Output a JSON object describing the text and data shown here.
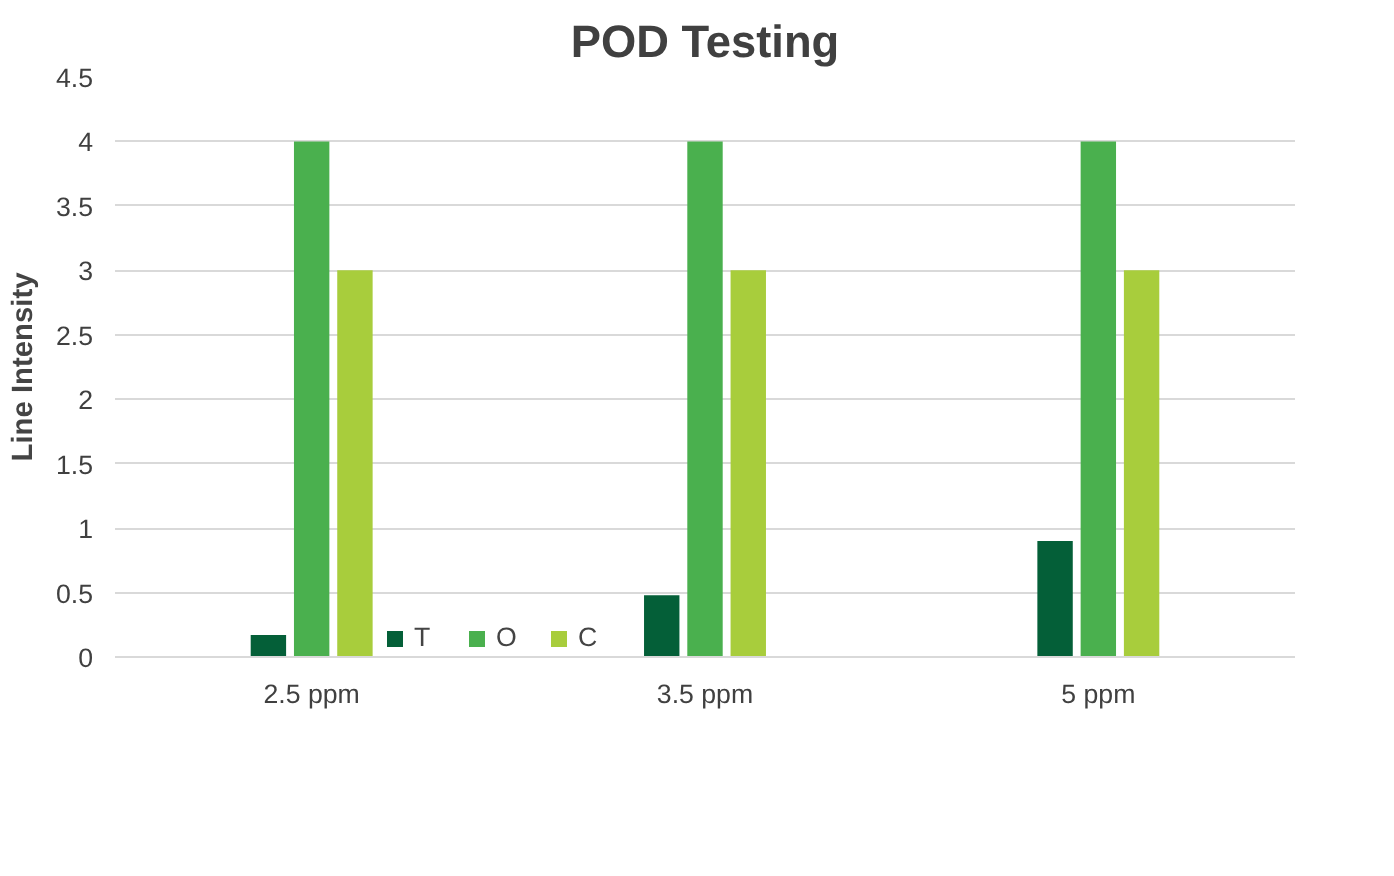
{
  "chart_data": {
    "type": "bar",
    "title": "POD Testing",
    "ylabel": "Line Intensity",
    "categories": [
      "2.5 ppm",
      "3.5 ppm",
      "5 ppm"
    ],
    "series": [
      {
        "name": "T",
        "color": "#045f38",
        "values": [
          0.17,
          0.48,
          0.9
        ]
      },
      {
        "name": "O",
        "color": "#4ab04e",
        "values": [
          4,
          4,
          4
        ]
      },
      {
        "name": "C",
        "color": "#a8cd3c",
        "values": [
          3,
          3,
          3
        ]
      }
    ],
    "ylim": [
      0,
      4.5
    ],
    "yticks": [
      0,
      0.5,
      1,
      1.5,
      2,
      2.5,
      3,
      3.5,
      4,
      4.5
    ],
    "grid": "y",
    "legend": "bottom"
  }
}
